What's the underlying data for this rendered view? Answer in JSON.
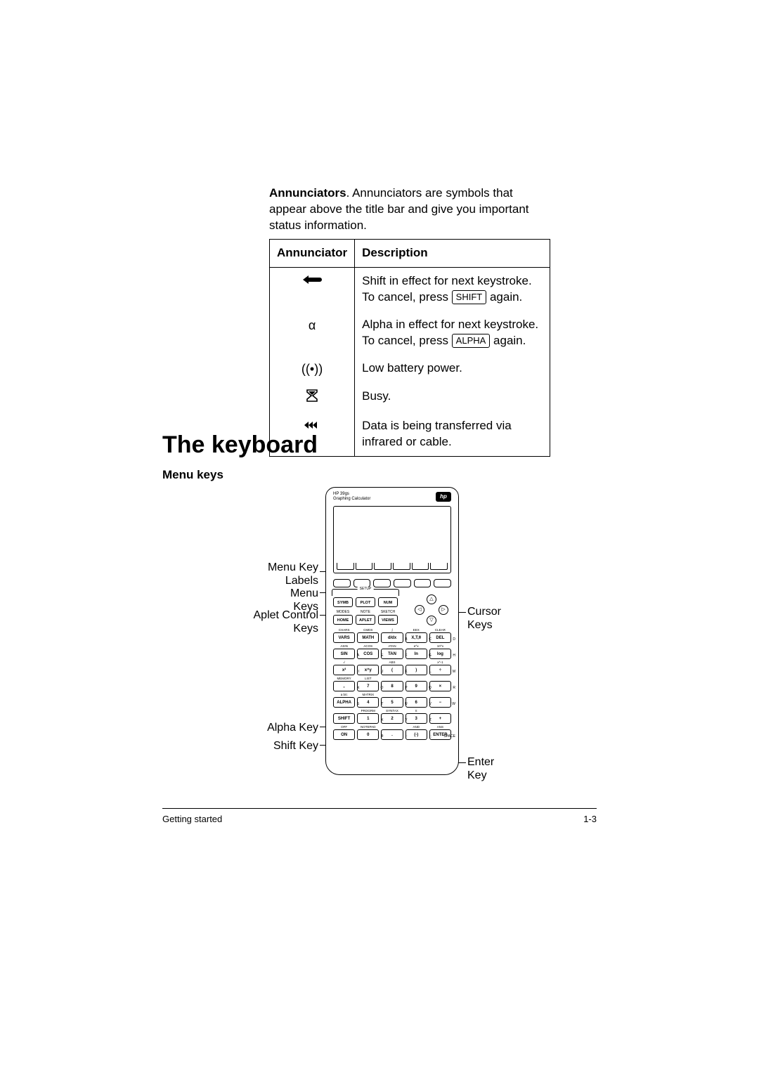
{
  "intro": {
    "bold": "Annunciators",
    "rest": ". Annunciators are symbols that appear above the title bar and give you important status information."
  },
  "table": {
    "headers": [
      "Annunciator",
      "Description"
    ],
    "rows": [
      {
        "symbol_svg": "shift",
        "desc_pre": "Shift in effect for next keystroke. To cancel, press ",
        "keycap": "SHIFT",
        "desc_post": " again."
      },
      {
        "symbol_text": "α",
        "desc_pre": "Alpha in effect for next keystroke. To cancel, press ",
        "keycap": "ALPHA",
        "desc_post": " again."
      },
      {
        "symbol_text": "((•))",
        "desc_plain": "Low battery power."
      },
      {
        "symbol_svg": "hourglass",
        "desc_plain": "Busy."
      },
      {
        "symbol_svg": "transfer",
        "desc_plain": "Data is being transferred via infrared or cable."
      }
    ]
  },
  "headings": {
    "keyboard": "The keyboard",
    "menukeys": "Menu keys"
  },
  "calc": {
    "model_line1": "HP 39gs",
    "model_line2": "Graphing Calculator",
    "hp": "hp",
    "setup_label": "SETUP",
    "apl_row1_sup": [
      "",
      "",
      ""
    ],
    "apl_row1": [
      "SYMB",
      "PLOT",
      "NUM"
    ],
    "apl_row2_sup": [
      "MODES",
      "NOTE",
      "SKETCH"
    ],
    "apl_row2": [
      "HOME",
      "APLET",
      "VIEWS"
    ],
    "cursor": [
      "△",
      "◁",
      "▷",
      "▽"
    ],
    "rows": [
      {
        "sup": [
          "CHARS",
          "CMDS",
          "∫",
          "EEX",
          "CLEAR"
        ],
        "keys": [
          "VARS",
          "MATH",
          "d/dx",
          "X,T,θ",
          "DEL"
        ],
        "subs": [
          "",
          "",
          "B",
          "C",
          "D"
        ]
      },
      {
        "sup": [
          "ASIN",
          "ACOS",
          "ATAN",
          "e^x",
          "10^x"
        ],
        "keys": [
          "SIN",
          "COS",
          "TAN",
          "ln",
          "log"
        ],
        "subs": [
          "A",
          "E",
          "F",
          "G",
          "H"
        ]
      },
      {
        "sup": [
          "√",
          "",
          "ABS",
          "",
          "x^-1"
        ],
        "keys": [
          "x²",
          "x^y",
          "(",
          ")",
          "÷"
        ],
        "subs": [
          "I",
          "J",
          "K",
          "L",
          "M"
        ]
      },
      {
        "sup": [
          "MEMORY",
          "LIST",
          "",
          "",
          ""
        ],
        "keys": [
          ",",
          "7",
          "8",
          "9",
          "×"
        ],
        "subs": [
          "N",
          "O",
          "P",
          "Q",
          "R"
        ]
      },
      {
        "sup": [
          "a b/c",
          "MATRIX",
          "",
          "",
          ""
        ],
        "keys": [
          "ALPHA",
          "4",
          "5",
          "6",
          "−"
        ],
        "subs": [
          "S",
          "T",
          "U",
          "V",
          "W"
        ]
      },
      {
        "sup": [
          "",
          "PROGRM",
          "SYNTAX",
          "π",
          ""
        ],
        "keys": [
          "SHIFT",
          "1",
          "2",
          "3",
          "+"
        ],
        "subs": [
          "",
          "X",
          "Y",
          "Z",
          ""
        ]
      },
      {
        "sup": [
          "OFF",
          "NOTEPAD",
          "",
          "AND",
          "ANS"
        ],
        "keys": [
          "ON",
          "0",
          ".",
          "(-)",
          "ENTER"
        ],
        "subs": [
          "",
          "θ",
          ":",
          ";",
          "SPACE"
        ]
      }
    ]
  },
  "labels": {
    "menu_key_labels": "Menu Key\nLabels",
    "menu_keys": "Menu Keys",
    "aplet_control": "Aplet Control\nKeys",
    "alpha_key": "Alpha Key",
    "shift_key": "Shift Key",
    "cursor_keys": "Cursor\nKeys",
    "enter_key": "Enter\nKey"
  },
  "footer": {
    "left": "Getting started",
    "right": "1-3"
  },
  "colors": {
    "text": "#000000",
    "bg": "#ffffff"
  }
}
